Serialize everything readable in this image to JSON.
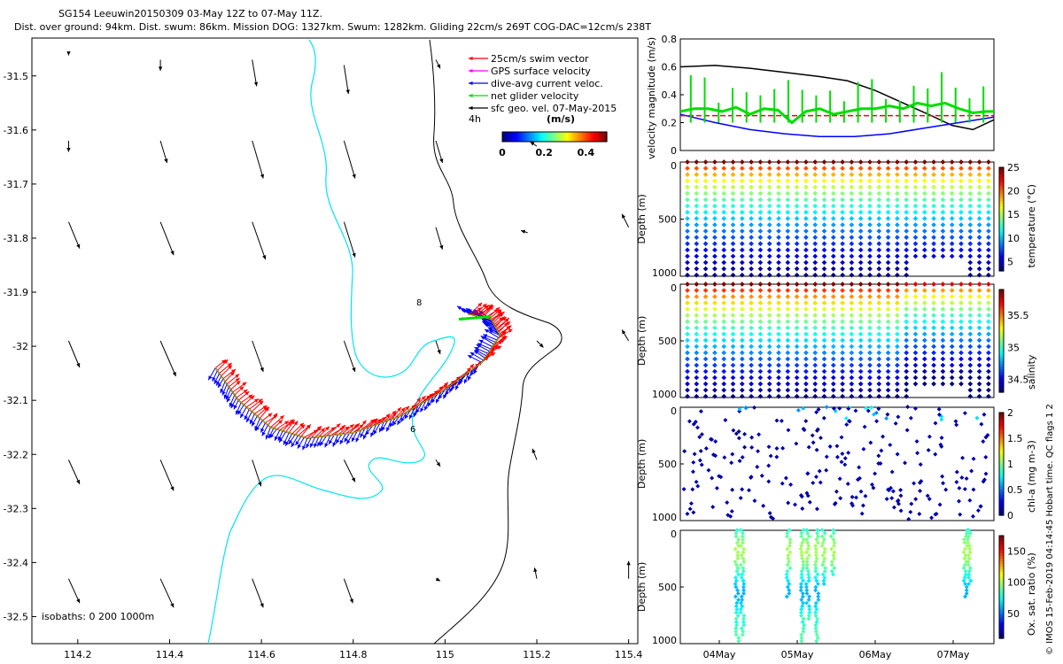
{
  "header": {
    "title_line1": "SG154 Leeuwin20150309 03-May 12Z to 07-May 11Z.",
    "title_line2": "Dist. over ground: 94km. Dist. swum: 86km. Mission DOG: 1327km. Swum: 1282km. Gliding 22cm/s 269T COG-DAC=12cm/s 238T"
  },
  "credit": "© IMOS 15-Feb-2019 04:14:45 Hobart time. QC flags 1  2",
  "chart_data": [
    {
      "type": "map",
      "name": "glider track map",
      "xlim": [
        114.1,
        115.42
      ],
      "ylim": [
        -32.55,
        -31.43
      ],
      "xticks": [
        114.2,
        114.4,
        114.6,
        114.8,
        115,
        115.2,
        115.4
      ],
      "xtick_labels": [
        "114.2",
        "114.4",
        "114.6",
        "114.8",
        "115",
        "115.2",
        "115.4"
      ],
      "yticks": [
        -31.5,
        -31.6,
        -31.7,
        -31.8,
        -31.9,
        -32,
        -32.1,
        -32.2,
        -32.3,
        -32.4,
        -32.5
      ],
      "ytick_labels": [
        "-31.5",
        "-31.6",
        "-31.7",
        "-31.8",
        "-31.9",
        "-32",
        "-32.1",
        "-32.2",
        "-32.3",
        "-32.4",
        "-32.5"
      ],
      "legend": [
        {
          "label": "25cm/s swim vector",
          "color": "#ff0000"
        },
        {
          "label": "GPS surface velocity",
          "color": "#ff00ff"
        },
        {
          "label": "dive-avg current veloc.",
          "color": "#0000ff"
        },
        {
          "label": "net glider velocity",
          "color": "#00dd00"
        },
        {
          "label": "sfc geo. vel. 07-May-2015",
          "color": "#000000"
        }
      ],
      "legend_extra": "4h",
      "colorbar": {
        "label": "(m/s)",
        "ticks": [
          "0",
          "0.2",
          "0.4"
        ],
        "range": [
          0,
          0.5
        ]
      },
      "isobath_note": "isobaths: 0   200  1000m",
      "track_labels": [
        "8",
        "6"
      ],
      "track": [
        [
          114.5,
          -32.04
        ],
        [
          114.55,
          -32.1
        ],
        [
          114.62,
          -32.15
        ],
        [
          114.7,
          -32.17
        ],
        [
          114.8,
          -32.16
        ],
        [
          114.9,
          -32.13
        ],
        [
          115.0,
          -32.08
        ],
        [
          115.08,
          -32.03
        ],
        [
          115.12,
          -31.98
        ],
        [
          115.1,
          -31.95
        ],
        [
          115.05,
          -31.94
        ]
      ],
      "geo_vectors": [
        {
          "lon": 114.18,
          "lat": -31.46,
          "u": 0.0,
          "v": -0.005
        },
        {
          "lon": 114.38,
          "lat": -31.47,
          "u": 0.0,
          "v": -0.05
        },
        {
          "lon": 114.58,
          "lat": -31.47,
          "u": 0.02,
          "v": -0.12
        },
        {
          "lon": 114.78,
          "lat": -31.48,
          "u": 0.02,
          "v": -0.13
        },
        {
          "lon": 114.98,
          "lat": -31.47,
          "u": 0.02,
          "v": -0.04
        },
        {
          "lon": 114.18,
          "lat": -31.62,
          "u": 0.0,
          "v": -0.05
        },
        {
          "lon": 114.38,
          "lat": -31.62,
          "u": 0.03,
          "v": -0.1
        },
        {
          "lon": 114.58,
          "lat": -31.62,
          "u": 0.05,
          "v": -0.17
        },
        {
          "lon": 114.78,
          "lat": -31.62,
          "u": 0.05,
          "v": -0.17
        },
        {
          "lon": 114.98,
          "lat": -31.62,
          "u": 0.03,
          "v": -0.1
        },
        {
          "lon": 115.2,
          "lat": -31.63,
          "u": -0.03,
          "v": 0.02
        },
        {
          "lon": 114.18,
          "lat": -31.77,
          "u": 0.05,
          "v": -0.12
        },
        {
          "lon": 114.38,
          "lat": -31.77,
          "u": 0.06,
          "v": -0.15
        },
        {
          "lon": 114.58,
          "lat": -31.77,
          "u": 0.06,
          "v": -0.17
        },
        {
          "lon": 114.78,
          "lat": -31.77,
          "u": 0.05,
          "v": -0.16
        },
        {
          "lon": 114.98,
          "lat": -31.78,
          "u": 0.03,
          "v": -0.1
        },
        {
          "lon": 115.18,
          "lat": -31.79,
          "u": -0.03,
          "v": 0.01
        },
        {
          "lon": 115.4,
          "lat": -31.78,
          "u": -0.03,
          "v": 0.06
        },
        {
          "lon": 114.18,
          "lat": -31.99,
          "u": 0.05,
          "v": -0.12
        },
        {
          "lon": 114.38,
          "lat": -31.99,
          "u": 0.07,
          "v": -0.16
        },
        {
          "lon": 114.58,
          "lat": -31.99,
          "u": 0.05,
          "v": -0.14
        },
        {
          "lon": 114.78,
          "lat": -31.99,
          "u": 0.05,
          "v": -0.14
        },
        {
          "lon": 114.98,
          "lat": -31.99,
          "u": 0.02,
          "v": -0.06
        },
        {
          "lon": 115.2,
          "lat": -31.99,
          "u": 0.03,
          "v": -0.03
        },
        {
          "lon": 115.4,
          "lat": -31.99,
          "u": -0.03,
          "v": 0.05
        },
        {
          "lon": 114.18,
          "lat": -32.21,
          "u": 0.05,
          "v": -0.11
        },
        {
          "lon": 114.38,
          "lat": -32.21,
          "u": 0.06,
          "v": -0.14
        },
        {
          "lon": 114.58,
          "lat": -32.21,
          "u": 0.04,
          "v": -0.12
        },
        {
          "lon": 114.78,
          "lat": -32.21,
          "u": 0.05,
          "v": -0.1
        },
        {
          "lon": 114.98,
          "lat": -32.21,
          "u": 0.02,
          "v": -0.03
        },
        {
          "lon": 115.2,
          "lat": -32.21,
          "u": -0.02,
          "v": 0.05
        },
        {
          "lon": 114.18,
          "lat": -32.43,
          "u": 0.05,
          "v": -0.11
        },
        {
          "lon": 114.38,
          "lat": -32.43,
          "u": 0.06,
          "v": -0.13
        },
        {
          "lon": 114.58,
          "lat": -32.43,
          "u": 0.05,
          "v": -0.13
        },
        {
          "lon": 114.78,
          "lat": -32.43,
          "u": 0.04,
          "v": -0.11
        },
        {
          "lon": 114.98,
          "lat": -32.43,
          "u": 0.02,
          "v": -0.01
        },
        {
          "lon": 115.2,
          "lat": -32.43,
          "u": -0.01,
          "v": 0.05
        },
        {
          "lon": 115.4,
          "lat": -32.43,
          "u": 0.0,
          "v": 0.08
        }
      ]
    },
    {
      "type": "line",
      "name": "velocity magnitude",
      "ylabel": "velocity magnitude (m/s)",
      "ylim": [
        0,
        0.8
      ],
      "yticks": [
        0,
        0.2,
        0.4,
        0.6,
        0.8
      ],
      "xlim": [
        0,
        4.5
      ],
      "series": [
        {
          "name": "sfc geo. vel.",
          "color": "#000000",
          "x": [
            0,
            0.5,
            1.0,
            1.5,
            2.0,
            2.4,
            2.8,
            3.2,
            3.6,
            3.9,
            4.2,
            4.5
          ],
          "values": [
            0.6,
            0.61,
            0.59,
            0.56,
            0.53,
            0.5,
            0.43,
            0.34,
            0.25,
            0.18,
            0.15,
            0.22
          ]
        },
        {
          "name": "dive-avg current veloc.",
          "color": "#0000ff",
          "x": [
            0,
            0.5,
            1.0,
            1.5,
            2.0,
            2.5,
            3.0,
            3.5,
            4.0,
            4.5
          ],
          "values": [
            0.26,
            0.2,
            0.15,
            0.12,
            0.1,
            0.1,
            0.12,
            0.16,
            0.2,
            0.24
          ]
        },
        {
          "name": "25cm/s swim vector",
          "color": "#ff0000",
          "x": [
            0,
            4.5
          ],
          "values": [
            0.25,
            0.25
          ]
        },
        {
          "name": "net glider velocity",
          "color": "#00dd00",
          "x": [
            0,
            0.2,
            0.4,
            0.6,
            0.8,
            1.0,
            1.2,
            1.4,
            1.6,
            1.8,
            2.0,
            2.2,
            2.4,
            2.6,
            2.8,
            3.0,
            3.2,
            3.4,
            3.6,
            3.8,
            4.0,
            4.2,
            4.4,
            4.5
          ],
          "values": [
            0.28,
            0.3,
            0.3,
            0.28,
            0.31,
            0.26,
            0.3,
            0.29,
            0.2,
            0.28,
            0.3,
            0.26,
            0.28,
            0.3,
            0.3,
            0.32,
            0.3,
            0.34,
            0.32,
            0.34,
            0.3,
            0.27,
            0.28,
            0.28
          ]
        }
      ]
    },
    {
      "type": "scatter",
      "name": "temperature section",
      "ylabel": "Depth (m)",
      "yticks": [
        "0",
        "500",
        "1000"
      ],
      "colorbar_label": "temperature (°C)",
      "colorbar_ticks": [
        "5",
        "10",
        "15",
        "20",
        "25"
      ],
      "crange": [
        3,
        25
      ]
    },
    {
      "type": "scatter",
      "name": "salinity section",
      "ylabel": "Depth (m)",
      "yticks": [
        "0",
        "500",
        "1000"
      ],
      "colorbar_label": "salinity",
      "colorbar_ticks": [
        "34.5",
        "35",
        "35.5"
      ],
      "crange": [
        34.3,
        35.9
      ]
    },
    {
      "type": "scatter",
      "name": "chlorophyll section",
      "ylabel": "Depth (m)",
      "yticks": [
        "0",
        "500",
        "1000"
      ],
      "colorbar_label": "chl-a (mg m-3)",
      "colorbar_ticks": [
        "0",
        "0.5",
        "1",
        "1.5",
        "2"
      ],
      "crange": [
        0,
        2
      ]
    },
    {
      "type": "scatter",
      "name": "oxygen saturation section",
      "ylabel": "Depth (m)",
      "yticks": [
        "0",
        "500",
        "1000"
      ],
      "colorbar_label": "Ox. sat. ratio (%)",
      "colorbar_ticks": [
        "50",
        "100",
        "150"
      ],
      "crange": [
        10,
        175
      ],
      "xtick_labels": [
        "04May",
        "05May",
        "06May",
        "07May"
      ]
    }
  ]
}
